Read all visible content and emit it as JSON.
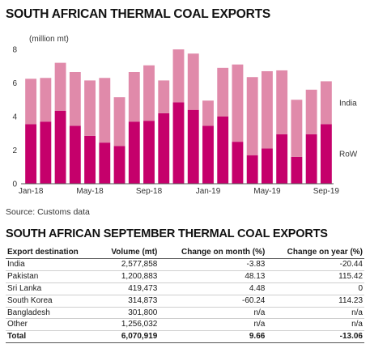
{
  "chart_title": "SOUTH AFRICAN THERMAL COAL EXPORTS",
  "chart_data": {
    "type": "bar",
    "stacked": true,
    "ylabel": "(million mt)",
    "ylim": [
      0,
      8
    ],
    "y_ticks": [
      0,
      2,
      4,
      6,
      8
    ],
    "categories": [
      "Jan-18",
      "Feb-18",
      "Mar-18",
      "Apr-18",
      "May-18",
      "Jun-18",
      "Jul-18",
      "Aug-18",
      "Sep-18",
      "Oct-18",
      "Nov-18",
      "Dec-18",
      "Jan-19",
      "Feb-19",
      "Mar-19",
      "Apr-19",
      "May-19",
      "Jun-19",
      "Jul-19",
      "Aug-19",
      "Sep-19"
    ],
    "x_tick_labels": {
      "0": "Jan-18",
      "4": "May-18",
      "8": "Sep-18",
      "12": "Jan-19",
      "16": "May-19",
      "20": "Sep-19"
    },
    "series": [
      {
        "name": "RoW",
        "color": "#c5006b",
        "values": [
          3.55,
          3.7,
          4.35,
          3.45,
          2.85,
          2.45,
          2.25,
          3.7,
          3.75,
          4.2,
          4.85,
          4.4,
          3.45,
          4.0,
          2.5,
          1.7,
          2.1,
          2.95,
          1.6,
          2.95,
          3.55
        ]
      },
      {
        "name": "India",
        "color": "#e08aaa",
        "values": [
          2.7,
          2.6,
          2.85,
          3.2,
          3.3,
          3.85,
          2.9,
          2.95,
          3.3,
          1.95,
          3.15,
          3.35,
          1.5,
          2.9,
          4.6,
          4.65,
          4.6,
          3.8,
          3.4,
          2.65,
          2.55
        ]
      }
    ],
    "legend_placement": "right, inline with stacks",
    "grid": false
  },
  "source_text": "Source: Customs data",
  "table_title": "SOUTH AFRICAN SEPTEMBER THERMAL COAL EXPORTS",
  "table": {
    "headers": [
      "Export destination",
      "Volume (mt)",
      "Change on month (%)",
      "Change on year (%)"
    ],
    "rows": [
      [
        "India",
        "2,577,858",
        "-3.83",
        "-20.44"
      ],
      [
        "Pakistan",
        "1,200,883",
        "48.13",
        "115.42"
      ],
      [
        "Sri Lanka",
        "419,473",
        "4.48",
        "0"
      ],
      [
        "South Korea",
        "314,873",
        "-60.24",
        "114.23"
      ],
      [
        "Bangladesh",
        "301,800",
        "n/a",
        "n/a"
      ],
      [
        "Other",
        "1,256,032",
        "n/a",
        "n/a"
      ]
    ],
    "total": [
      "Total",
      "6,070,919",
      "9.66",
      "-13.06"
    ]
  }
}
